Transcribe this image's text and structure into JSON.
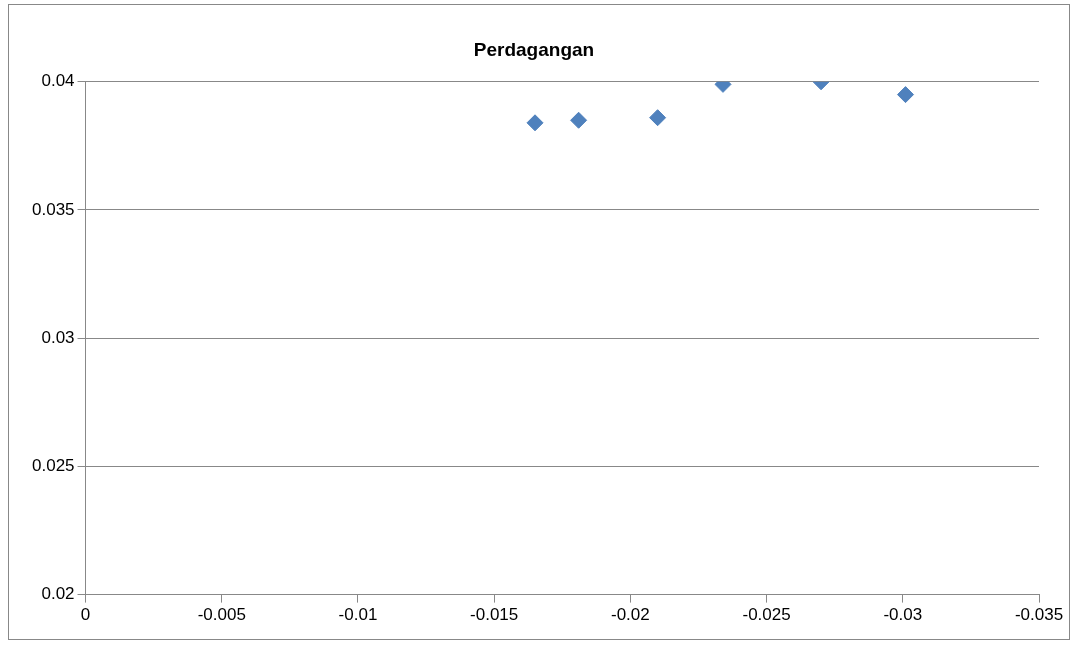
{
  "chart_data": {
    "type": "scatter",
    "title": "Perdagangan",
    "x": [
      -0.0165,
      -0.0181,
      -0.021,
      -0.0234,
      -0.027,
      -0.0301
    ],
    "series": [
      {
        "color": "#4f81bd",
        "values": [
          0.0384,
          0.0385,
          0.0386,
          0.0399,
          0.04,
          0.0395
        ]
      }
    ],
    "xlim": [
      0,
      -0.035
    ],
    "xticks": [
      0,
      -0.005,
      -0.01,
      -0.015,
      -0.02,
      -0.025,
      -0.03,
      -0.035
    ],
    "ylim": [
      0.02,
      0.04
    ],
    "yticks": [
      0.02,
      0.025,
      0.03,
      0.035,
      0.04
    ],
    "grid": "y",
    "legend": false,
    "marker": "diamond"
  }
}
